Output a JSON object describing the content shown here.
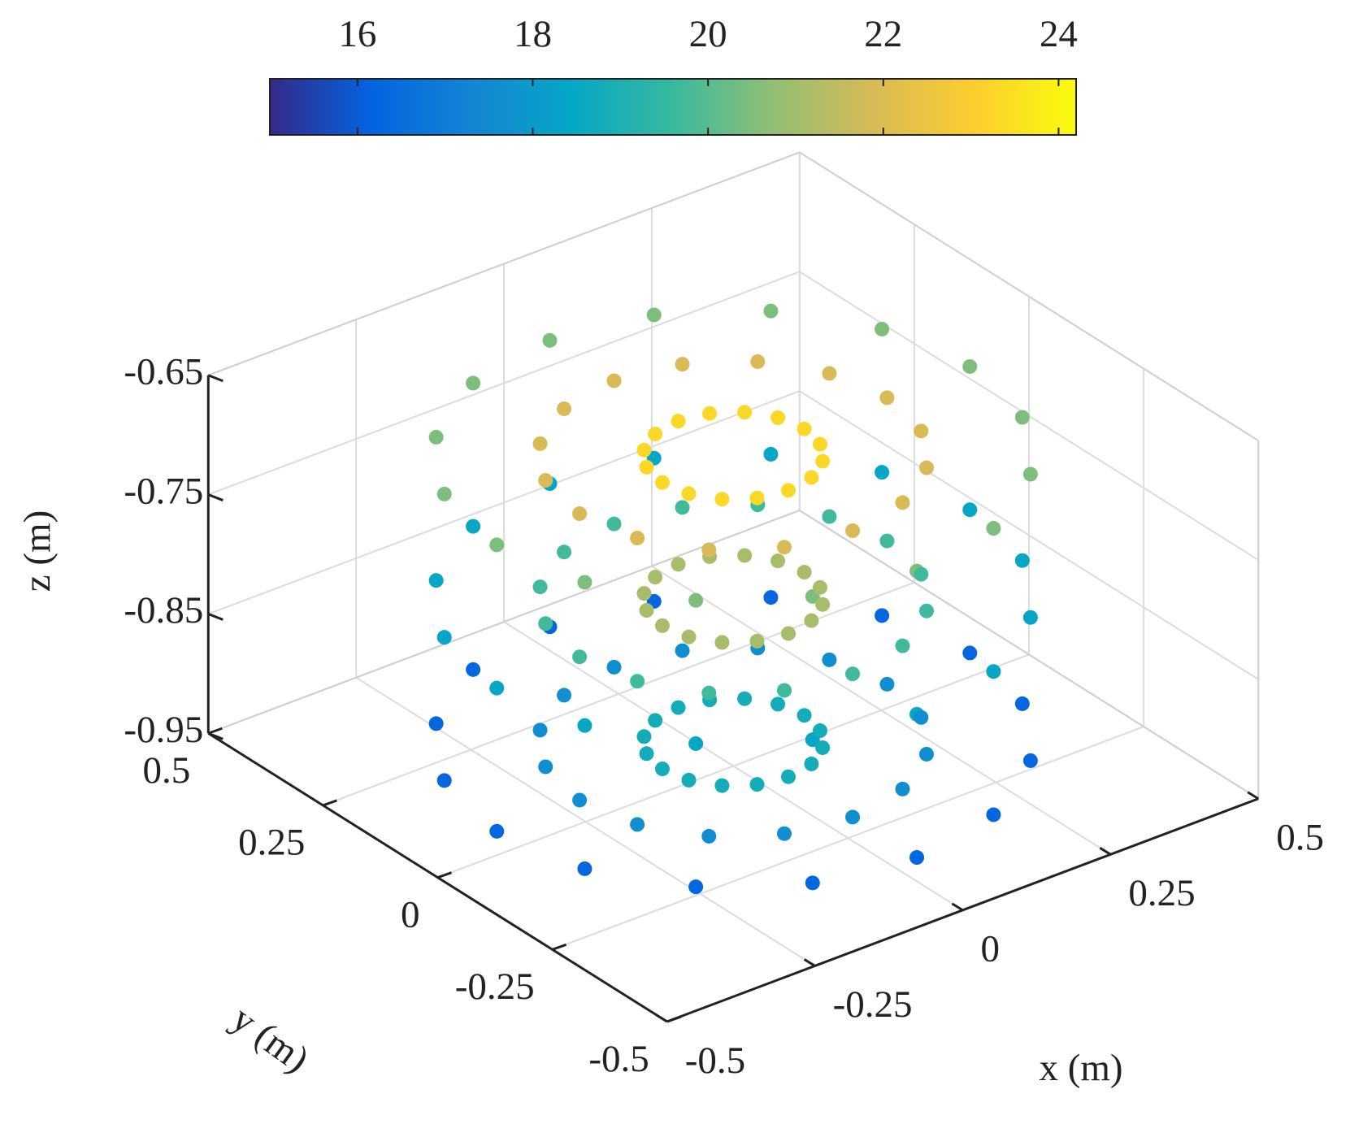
{
  "chart_data": {
    "type": "scatter3d",
    "xlabel": "x (m)",
    "ylabel": "y (m)",
    "zlabel": "z (m)",
    "xlim": [
      -0.5,
      0.5
    ],
    "ylim": [
      -0.5,
      0.5
    ],
    "zlim": [
      -0.95,
      -0.65
    ],
    "xticks": [
      -0.5,
      -0.25,
      0,
      0.25,
      0.5
    ],
    "yticks": [
      -0.5,
      -0.25,
      0,
      0.25,
      0.5
    ],
    "zticks": [
      -0.95,
      -0.85,
      -0.75,
      -0.65
    ],
    "grid": true,
    "clim": [
      15,
      24.2
    ],
    "cticks": [
      16,
      18,
      20,
      22,
      24
    ],
    "colormap": [
      "#352a87",
      "#0363e1",
      "#1485d4",
      "#06a7c6",
      "#38b99e",
      "#92bf73",
      "#d9ba56",
      "#fcce2e",
      "#f9fb0e"
    ],
    "z": [
      -0.93,
      -0.81,
      -0.69
    ],
    "series": [
      {
        "x": [
          0.12,
          0.26,
          0.4
        ],
        "y": [
          0,
          0,
          0
        ],
        "c": [
          [
            18.8,
            21.1,
            23.3
          ],
          [
            17.6,
            19.7,
            21.9
          ],
          [
            16.3,
            18.4,
            20.5
          ]
        ]
      },
      {
        "x": [
          0.111,
          0.24,
          0.37
        ],
        "y": [
          0.046,
          0.1,
          0.153
        ],
        "c": [
          [
            18.8,
            21.1,
            23.3
          ],
          [
            17.6,
            19.7,
            21.9
          ],
          [
            16.3,
            18.4,
            20.5
          ]
        ]
      },
      {
        "x": [
          0.085,
          0.184,
          0.283
        ],
        "y": [
          0.085,
          0.184,
          0.283
        ],
        "c": [
          [
            18.8,
            21.1,
            23.3
          ],
          [
            17.6,
            19.7,
            21.9
          ],
          [
            16.3,
            18.4,
            20.5
          ]
        ]
      },
      {
        "x": [
          0.046,
          0.1,
          0.153
        ],
        "y": [
          0.111,
          0.24,
          0.37
        ],
        "c": [
          [
            18.8,
            21.1,
            23.3
          ],
          [
            17.6,
            19.7,
            21.9
          ],
          [
            16.3,
            18.4,
            20.5
          ]
        ]
      },
      {
        "x": [
          0,
          0,
          0
        ],
        "y": [
          0.12,
          0.26,
          0.4
        ],
        "c": [
          [
            18.8,
            21.1,
            23.3
          ],
          [
            17.6,
            19.7,
            21.9
          ],
          [
            16.3,
            18.4,
            20.5
          ]
        ]
      },
      {
        "x": [
          -0.046,
          -0.1,
          -0.153
        ],
        "y": [
          0.111,
          0.24,
          0.37
        ],
        "c": [
          [
            18.8,
            21.1,
            23.3
          ],
          [
            17.6,
            19.7,
            21.9
          ],
          [
            16.3,
            18.4,
            20.5
          ]
        ]
      },
      {
        "x": [
          -0.085,
          -0.184,
          -0.283
        ],
        "y": [
          0.085,
          0.184,
          0.283
        ],
        "c": [
          [
            18.8,
            21.1,
            23.3
          ],
          [
            17.6,
            19.7,
            21.9
          ],
          [
            16.3,
            18.4,
            20.5
          ]
        ]
      },
      {
        "x": [
          -0.111,
          -0.24,
          -0.37
        ],
        "y": [
          0.046,
          0.1,
          0.153
        ],
        "c": [
          [
            18.8,
            21.1,
            23.3
          ],
          [
            17.6,
            19.7,
            21.9
          ],
          [
            16.3,
            18.4,
            20.5
          ]
        ]
      },
      {
        "x": [
          -0.12,
          -0.26,
          -0.4
        ],
        "y": [
          0,
          0,
          0
        ],
        "c": [
          [
            18.8,
            21.1,
            23.3
          ],
          [
            17.6,
            19.7,
            21.9
          ],
          [
            16.3,
            18.4,
            20.5
          ]
        ]
      },
      {
        "x": [
          -0.111,
          -0.24,
          -0.37
        ],
        "y": [
          -0.046,
          -0.1,
          -0.153
        ],
        "c": [
          [
            18.8,
            21.1,
            23.3
          ],
          [
            17.6,
            19.7,
            21.9
          ],
          [
            16.3,
            18.4,
            20.5
          ]
        ]
      },
      {
        "x": [
          -0.085,
          -0.184,
          -0.283
        ],
        "y": [
          -0.085,
          -0.184,
          -0.283
        ],
        "c": [
          [
            18.8,
            21.1,
            23.3
          ],
          [
            17.6,
            19.7,
            21.9
          ],
          [
            16.3,
            18.4,
            20.5
          ]
        ]
      },
      {
        "x": [
          -0.046,
          -0.1,
          -0.153
        ],
        "y": [
          -0.111,
          -0.24,
          -0.37
        ],
        "c": [
          [
            18.8,
            21.1,
            23.3
          ],
          [
            17.6,
            19.7,
            21.9
          ],
          [
            16.3,
            18.4,
            20.5
          ]
        ]
      },
      {
        "x": [
          0,
          0,
          0
        ],
        "y": [
          -0.12,
          -0.26,
          -0.4
        ],
        "c": [
          [
            18.8,
            21.1,
            23.3
          ],
          [
            17.6,
            19.7,
            21.9
          ],
          [
            16.3,
            18.4,
            20.5
          ]
        ]
      },
      {
        "x": [
          0.046,
          0.1,
          0.153
        ],
        "y": [
          -0.111,
          -0.24,
          -0.37
        ],
        "c": [
          [
            18.8,
            21.1,
            23.3
          ],
          [
            17.6,
            19.7,
            21.9
          ],
          [
            16.3,
            18.4,
            20.5
          ]
        ]
      },
      {
        "x": [
          0.085,
          0.184,
          0.283
        ],
        "y": [
          -0.085,
          -0.184,
          -0.283
        ],
        "c": [
          [
            18.8,
            21.1,
            23.3
          ],
          [
            17.6,
            19.7,
            21.9
          ],
          [
            16.3,
            18.4,
            20.5
          ]
        ]
      },
      {
        "x": [
          0.111,
          0.24,
          0.37
        ],
        "y": [
          -0.046,
          -0.1,
          -0.153
        ],
        "c": [
          [
            18.8,
            21.1,
            23.3
          ],
          [
            17.6,
            19.7,
            21.9
          ],
          [
            16.3,
            18.4,
            20.5
          ]
        ]
      }
    ]
  }
}
